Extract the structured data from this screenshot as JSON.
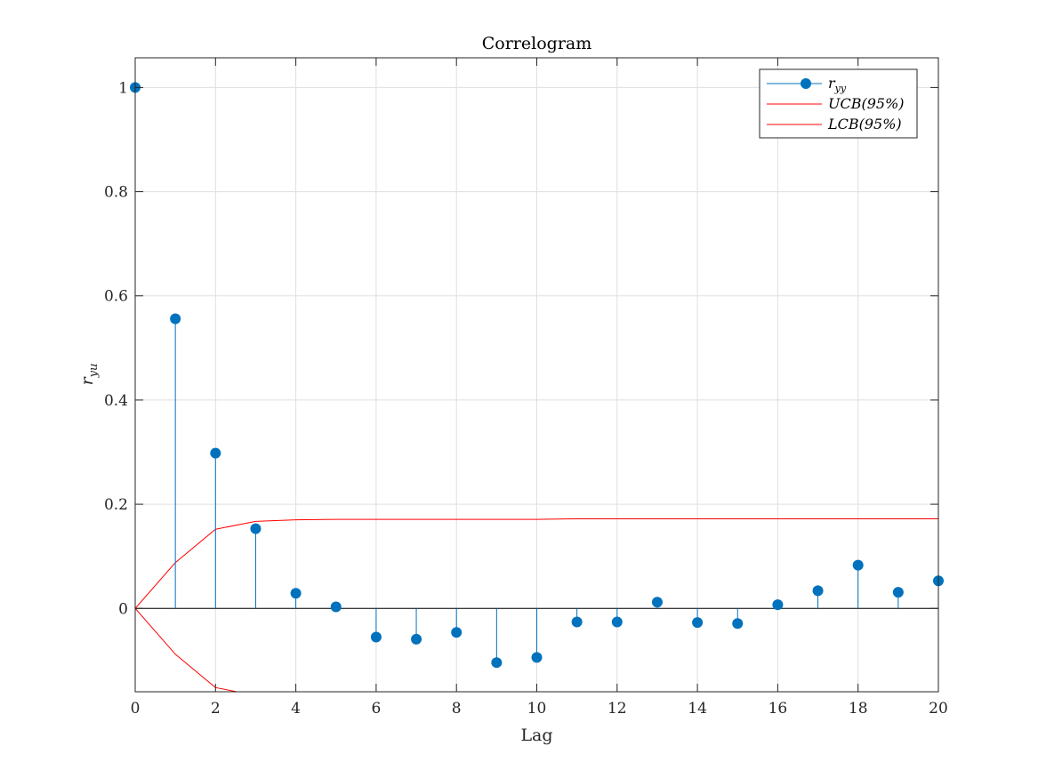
{
  "chart_data": {
    "type": "stem",
    "title": "Correlogram",
    "xlabel": "Lag",
    "ylabel_main": "r",
    "ylabel_sub": "yu",
    "xlim": [
      0,
      20
    ],
    "ylim": [
      -0.16,
      1.057
    ],
    "x_ticks": [
      0,
      2,
      4,
      6,
      8,
      10,
      12,
      14,
      16,
      18,
      20
    ],
    "y_ticks": [
      0,
      0.2,
      0.4,
      0.6,
      0.8,
      1
    ],
    "y_tick_labels": [
      "0",
      "0.2",
      "0.4",
      "0.6",
      "0.8",
      "1"
    ],
    "grid": true,
    "legend_position": "top-right",
    "series": [
      {
        "name": "r_yy",
        "legend_label_main": "r",
        "legend_label_sub": "yy",
        "color": "#0072BD",
        "x": [
          0,
          1,
          2,
          3,
          4,
          5,
          6,
          7,
          8,
          9,
          10,
          11,
          12,
          13,
          14,
          15,
          16,
          17,
          18,
          19,
          20
        ],
        "values": [
          1.0,
          0.556,
          0.298,
          0.153,
          0.029,
          0.003,
          -0.055,
          -0.059,
          -0.046,
          -0.104,
          -0.094,
          -0.026,
          -0.026,
          0.012,
          -0.027,
          -0.029,
          0.007,
          0.034,
          0.083,
          0.031,
          0.053
        ]
      },
      {
        "name": "UCB(95%)",
        "color": "#FF0000",
        "x": [
          0,
          1,
          2,
          3,
          4,
          5,
          6,
          7,
          8,
          9,
          10,
          11,
          12,
          13,
          14,
          15,
          16,
          17,
          18,
          19,
          20
        ],
        "values": [
          0,
          0.088,
          0.152,
          0.167,
          0.17,
          0.171,
          0.171,
          0.171,
          0.171,
          0.171,
          0.171,
          0.172,
          0.172,
          0.172,
          0.172,
          0.172,
          0.172,
          0.172,
          0.172,
          0.172,
          0.172
        ]
      },
      {
        "name": "LCB(95%)",
        "color": "#FF0000",
        "x": [
          0,
          1,
          2,
          3,
          4,
          5,
          6,
          7,
          8,
          9,
          10,
          11,
          12,
          13,
          14,
          15,
          16,
          17,
          18,
          19,
          20
        ],
        "values": [
          0,
          -0.088,
          -0.152,
          -0.167,
          -0.17,
          -0.171,
          -0.171,
          -0.171,
          -0.171,
          -0.171,
          -0.171,
          -0.172,
          -0.172,
          -0.172,
          -0.172,
          -0.172,
          -0.172,
          -0.172,
          -0.172,
          -0.172,
          -0.172
        ]
      }
    ]
  }
}
